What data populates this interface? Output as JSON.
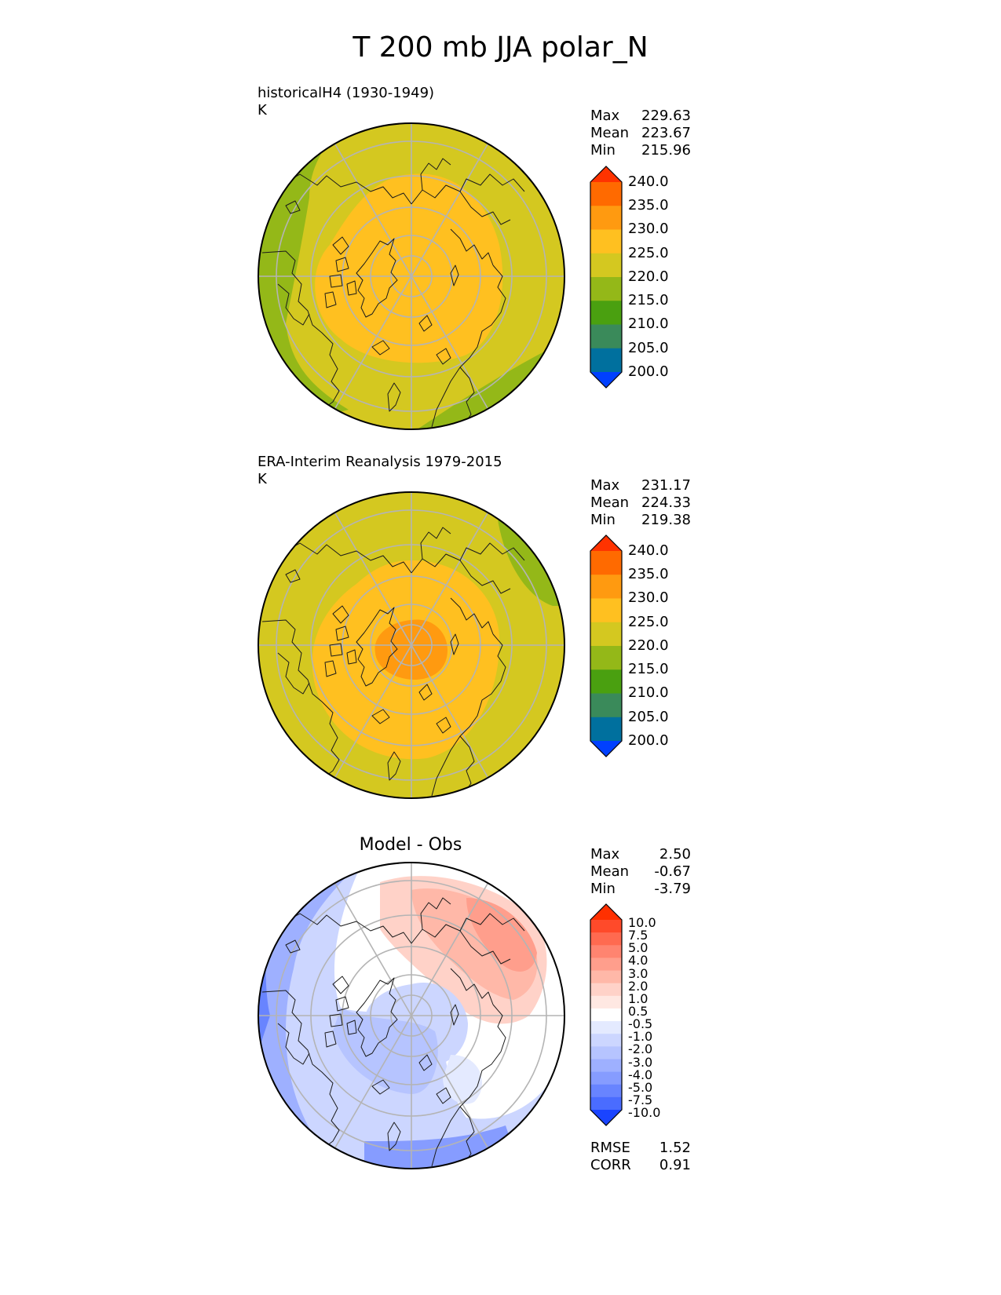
{
  "figure_title": "T 200 mb JJA polar_N",
  "panels": [
    {
      "id": "model",
      "title_line1": "historicalH4 (1930-1949)",
      "title_line2": "K",
      "stats": [
        {
          "label": "Max",
          "value": "229.63"
        },
        {
          "label": "Mean",
          "value": "223.67"
        },
        {
          "label": "Min",
          "value": "215.96"
        }
      ],
      "colorbar": {
        "labels": [
          "240.0",
          "235.0",
          "230.0",
          "225.0",
          "220.0",
          "215.0",
          "210.0",
          "205.0",
          "200.0"
        ],
        "colors_top_to_bottom": [
          "#ff3300",
          "#ff6a00",
          "#ff9a10",
          "#ffc020",
          "#d4c820",
          "#94b818",
          "#4aa010",
          "#3a8a5a",
          "#00709e",
          "#0040ff"
        ]
      },
      "field": {
        "background": "#d4c820",
        "outer_band_color": "#94b818",
        "warm_core_color": "#ffc020"
      }
    },
    {
      "id": "obs",
      "title_line1": "ERA-Interim Reanalysis 1979-2015",
      "title_line2": "K",
      "stats": [
        {
          "label": "Max",
          "value": "231.17"
        },
        {
          "label": "Mean",
          "value": "224.33"
        },
        {
          "label": "Min",
          "value": "219.38"
        }
      ],
      "colorbar": {
        "labels": [
          "240.0",
          "235.0",
          "230.0",
          "225.0",
          "220.0",
          "215.0",
          "210.0",
          "205.0",
          "200.0"
        ],
        "colors_top_to_bottom": [
          "#ff3300",
          "#ff6a00",
          "#ff9a10",
          "#ffc020",
          "#d4c820",
          "#94b818",
          "#4aa010",
          "#3a8a5a",
          "#00709e",
          "#0040ff"
        ]
      },
      "field": {
        "background": "#d4c820",
        "outer_band_color": "#94b818",
        "warm_core_color": "#ffc020",
        "pole_max_color": "#ff9a10"
      }
    },
    {
      "id": "diff",
      "title": "Model - Obs",
      "stats": [
        {
          "label": "Max",
          "value": "2.50"
        },
        {
          "label": "Mean",
          "value": "-0.67"
        },
        {
          "label": "Min",
          "value": "-3.79"
        }
      ],
      "colorbar": {
        "labels": [
          "10.0",
          "7.5",
          "5.0",
          "4.0",
          "3.0",
          "2.0",
          "1.0",
          "0.5",
          "-0.5",
          "-1.0",
          "-2.0",
          "-3.0",
          "-4.0",
          "-5.0",
          "-7.5",
          "-10.0"
        ],
        "colors_top_to_bottom": [
          "#ff3000",
          "#ff4a2a",
          "#ff6a50",
          "#ff8470",
          "#ff9e8c",
          "#ffb8a8",
          "#ffd2c8",
          "#ffe8e2",
          "#ffffff",
          "#e4eaff",
          "#ccd6ff",
          "#b6c4ff",
          "#9eb0ff",
          "#869cff",
          "#6884ff",
          "#4a6cff",
          "#1a44ff"
        ]
      },
      "footer_stats": [
        {
          "label": "RMSE",
          "value": "1.52"
        },
        {
          "label": "CORR",
          "value": "0.91"
        }
      ]
    }
  ]
}
